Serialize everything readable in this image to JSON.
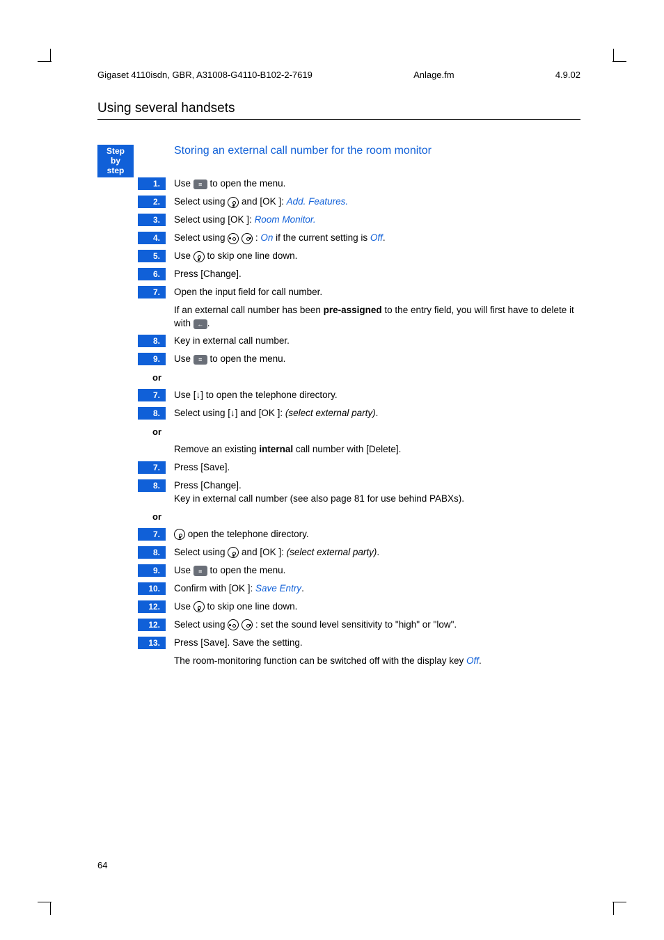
{
  "page_meta": {
    "doc_id": "Gigaset 4110isdn, GBR, A31008-G4110-B102-2-7619",
    "file_ref": "Anlage.fm",
    "date": "4.9.02",
    "section": "Using several handsets",
    "page_number": "64"
  },
  "sidebar": {
    "label_line1": "Step",
    "label_line2": "by",
    "label_line3": "step"
  },
  "subtitle": "Storing an external call number for the room monitor",
  "colors": {
    "brand_blue": "#1060d8",
    "key_gray": "#6a6f78"
  },
  "steps": [
    {
      "n": "1.",
      "text": "Use [≡] to open the menu."
    },
    {
      "n": "2.",
      "text": "Select using ⊙ and [OK ]: ",
      "tail": "Add. Features.",
      "tail_style": "blue italic"
    },
    {
      "n": "3.",
      "text": "Select using [OK ]: ",
      "tail": "Room Monitor.",
      "tail_style": "blue italic"
    },
    {
      "n": "4.",
      "text": "Select using ⊙ ⊙ : ",
      "tail": "On",
      "tail_style": "blue italic",
      "tail2": " if the current setting is ",
      "tail3": "Off",
      "tail3_style": "blue italic",
      "tail4": "."
    },
    {
      "n": "5.",
      "text": "Use ⊙ to skip one line down."
    },
    {
      "n": "6.",
      "text": "Press [Change]."
    },
    {
      "n": "7.",
      "text": "Open the input field for call number."
    },
    {
      "n": "",
      "text": "If an external call number has been ",
      "bold": "pre-assigned",
      "text2": " to the entry field, you will first have to delete it with ←."
    },
    {
      "n": "8.",
      "text": "Key in external call number."
    },
    {
      "n": "9.",
      "text": "Use ≡ to open the menu."
    },
    {
      "or": true
    },
    {
      "n": "7.",
      "text": "Use [↓] to open the telephone directory."
    },
    {
      "n": "8.",
      "text": "Select using [↓] and [OK ]: ",
      "tail": "(select external party)",
      "tail_style": "italic",
      "tail4": "."
    },
    {
      "or": true
    },
    {
      "n": "",
      "text": "Remove an existing ",
      "bold": "internal",
      "text2": " call number with [Delete]."
    },
    {
      "n": "7.",
      "text": "Press [Save]."
    },
    {
      "n": "8.",
      "text": "Press [Change].",
      "text2b": "Key in external call number (see also page 81 for use behind PABXs)."
    },
    {
      "or": true
    },
    {
      "n": "7.",
      "text": "⊙ open the telephone directory."
    },
    {
      "n": "8.",
      "text": "Select using ⊙ and [OK ]: ",
      "tail": "(select external party)",
      "tail_style": "italic",
      "tail4": "."
    },
    {
      "n": "9.",
      "text": "Use [≡] to open the menu."
    },
    {
      "n": "10.",
      "text": "Confirm with [OK ]: ",
      "tail": "Save Entry",
      "tail_style": "blue italic",
      "tail4": "."
    },
    {
      "n": "12.",
      "text": "Use ⊙ to skip one line down."
    },
    {
      "n": "12.",
      "text": "Select using ⊙ ⊙ : set the sound level sensitivity to \"high\" or \"low\"."
    },
    {
      "n": "13.",
      "text": "Press [Save]. Save the setting."
    },
    {
      "n": "",
      "text": "The room-monitoring function can be switched off with the display key ",
      "tail": "Off",
      "tail_style": "blue italic",
      "tail4": "."
    }
  ]
}
